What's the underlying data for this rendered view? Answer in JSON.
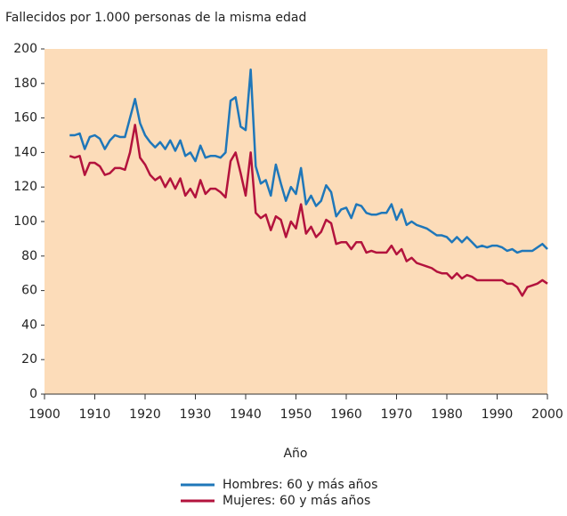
{
  "chart_data": {
    "type": "line",
    "title": "Fallecidos por 1.000 personas de la misma edad",
    "xlabel": "Año",
    "x": [
      1905,
      1906,
      1907,
      1908,
      1909,
      1910,
      1911,
      1912,
      1913,
      1914,
      1915,
      1916,
      1917,
      1918,
      1919,
      1920,
      1921,
      1922,
      1923,
      1924,
      1925,
      1926,
      1927,
      1928,
      1929,
      1930,
      1931,
      1932,
      1933,
      1934,
      1935,
      1936,
      1937,
      1938,
      1939,
      1940,
      1941,
      1942,
      1943,
      1944,
      1945,
      1946,
      1947,
      1948,
      1949,
      1950,
      1951,
      1952,
      1953,
      1954,
      1955,
      1956,
      1957,
      1958,
      1959,
      1960,
      1961,
      1962,
      1963,
      1964,
      1965,
      1966,
      1967,
      1968,
      1969,
      1970,
      1971,
      1972,
      1973,
      1974,
      1975,
      1976,
      1977,
      1978,
      1979,
      1980,
      1981,
      1982,
      1983,
      1984,
      1985,
      1986,
      1987,
      1988,
      1989,
      1990,
      1991,
      1992,
      1993,
      1994,
      1995,
      1996,
      1997,
      1998,
      1999,
      2000
    ],
    "series": [
      {
        "name": "Hombres: 60 y más años",
        "color": "#1f77b9",
        "values": [
          150,
          150,
          151,
          142,
          149,
          150,
          148,
          142,
          147,
          150,
          149,
          149,
          160,
          171,
          157,
          150,
          146,
          143,
          146,
          142,
          147,
          141,
          147,
          138,
          140,
          135,
          144,
          137,
          138,
          138,
          137,
          140,
          170,
          172,
          155,
          153,
          188,
          132,
          122,
          124,
          115,
          133,
          122,
          112,
          120,
          116,
          131,
          110,
          115,
          109,
          112,
          121,
          117,
          103,
          107,
          108,
          102,
          110,
          109,
          105,
          104,
          104,
          105,
          105,
          110,
          101,
          107,
          98,
          100,
          98,
          97,
          96,
          94,
          92,
          92,
          91,
          88,
          91,
          88,
          91,
          88,
          85,
          86,
          85,
          86,
          86,
          85,
          83,
          84,
          82,
          83,
          83,
          83,
          85,
          87,
          84
        ]
      },
      {
        "name": "Mujeres: 60 y más  años",
        "color": "#b3133d",
        "values": [
          138,
          137,
          138,
          127,
          134,
          134,
          132,
          127,
          128,
          131,
          131,
          130,
          140,
          156,
          137,
          133,
          127,
          124,
          126,
          120,
          125,
          119,
          125,
          115,
          119,
          114,
          124,
          116,
          119,
          119,
          117,
          114,
          135,
          140,
          128,
          115,
          140,
          105,
          102,
          104,
          95,
          103,
          101,
          91,
          100,
          96,
          110,
          93,
          97,
          91,
          94,
          101,
          99,
          87,
          88,
          88,
          84,
          88,
          88,
          82,
          83,
          82,
          82,
          82,
          86,
          81,
          84,
          77,
          79,
          76,
          75,
          74,
          73,
          71,
          70,
          70,
          67,
          70,
          67,
          69,
          68,
          66,
          66,
          66,
          66,
          66,
          66,
          64,
          64,
          62,
          57,
          62,
          63,
          64,
          66,
          64
        ]
      }
    ],
    "xlim": [
      1900,
      2000
    ],
    "xticks": [
      1900,
      1910,
      1920,
      1930,
      1940,
      1950,
      1960,
      1970,
      1980,
      1990,
      2000
    ],
    "ylim": [
      0,
      200
    ],
    "yticks": [
      0,
      20,
      40,
      60,
      80,
      100,
      120,
      140,
      160,
      180,
      200
    ],
    "background": "#fcdcb9"
  }
}
